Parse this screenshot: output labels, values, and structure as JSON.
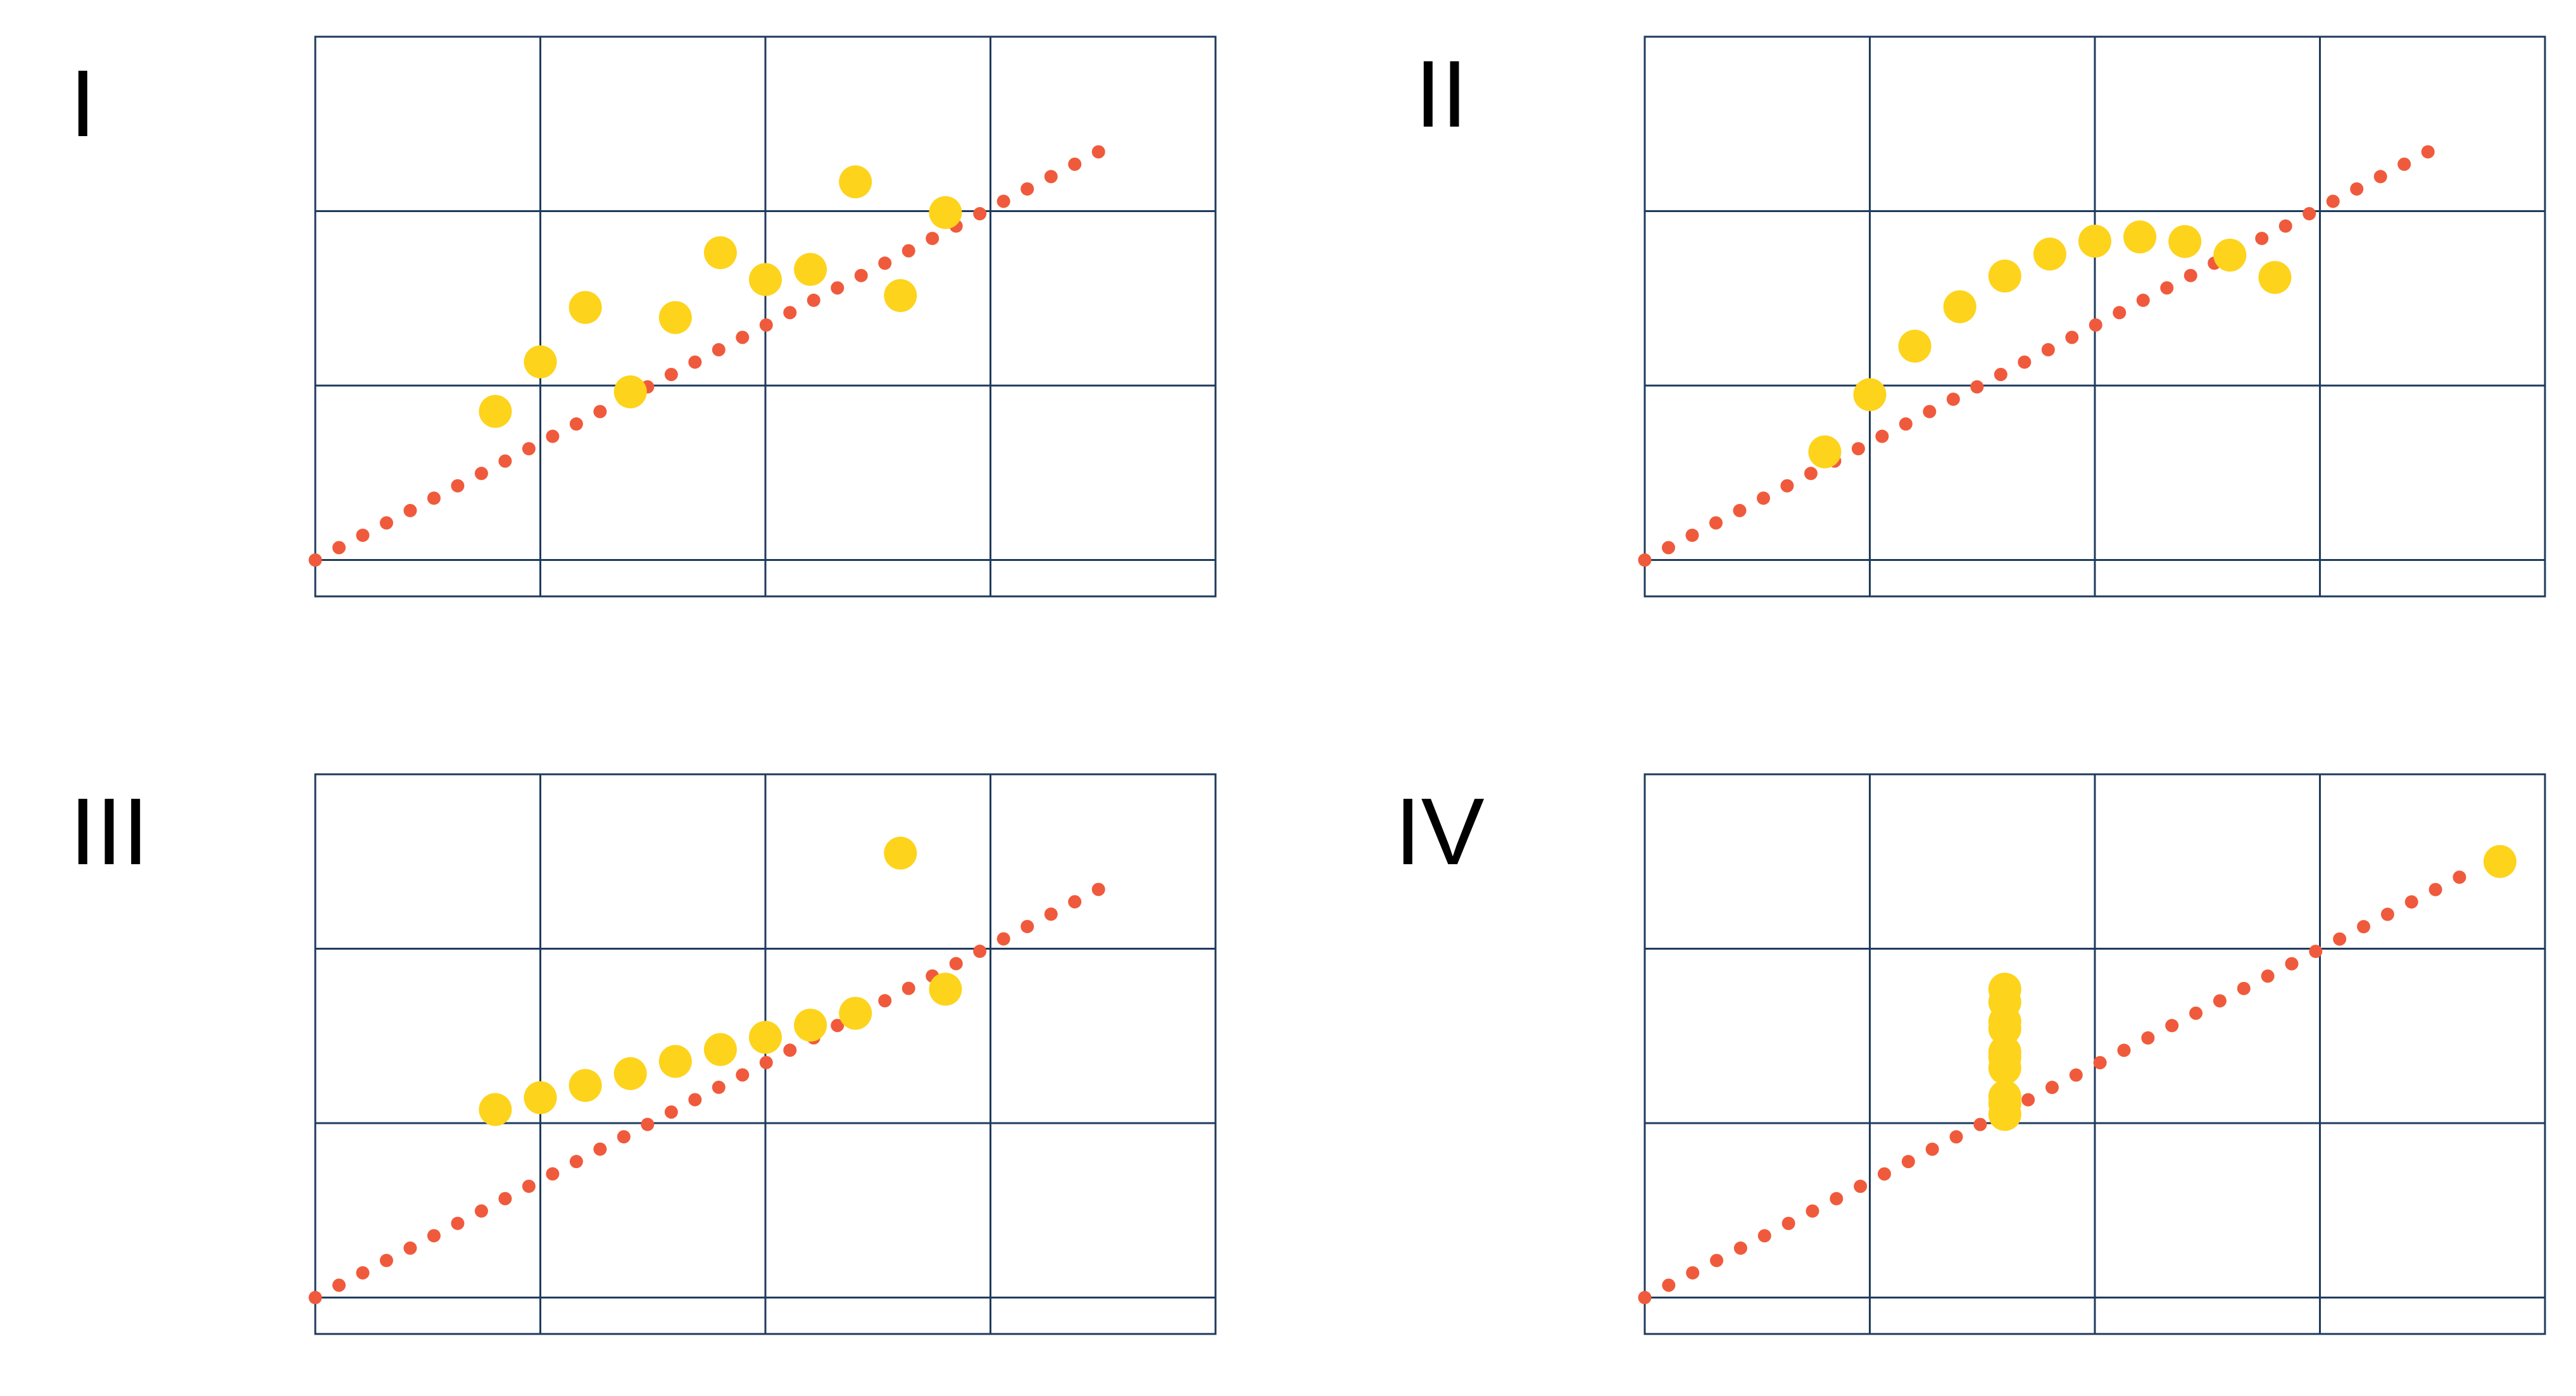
{
  "colors": {
    "grid": "#1f3b5c",
    "points": "#fdd31c",
    "regression": "#f05a3c",
    "background": "#ffffff"
  },
  "chart_data": [
    {
      "type": "scatter",
      "label": "I",
      "xlim": [
        0,
        20
      ],
      "ylim": [
        0,
        15
      ],
      "grid": true,
      "points": [
        {
          "x": 10,
          "y": 8.04
        },
        {
          "x": 8,
          "y": 6.95
        },
        {
          "x": 13,
          "y": 7.58
        },
        {
          "x": 9,
          "y": 8.81
        },
        {
          "x": 11,
          "y": 8.33
        },
        {
          "x": 14,
          "y": 9.96
        },
        {
          "x": 6,
          "y": 7.24
        },
        {
          "x": 4,
          "y": 4.26
        },
        {
          "x": 12,
          "y": 10.84
        },
        {
          "x": 7,
          "y": 4.82
        },
        {
          "x": 5,
          "y": 5.68
        }
      ],
      "regression": {
        "slope": 0.5,
        "intercept": 3.0,
        "x_range": [
          0,
          17.4
        ],
        "style": "dotted"
      }
    },
    {
      "type": "scatter",
      "label": "II",
      "xlim": [
        0,
        20
      ],
      "ylim": [
        0,
        15
      ],
      "grid": true,
      "points": [
        {
          "x": 10,
          "y": 9.14
        },
        {
          "x": 8,
          "y": 8.14
        },
        {
          "x": 13,
          "y": 8.74
        },
        {
          "x": 9,
          "y": 8.77
        },
        {
          "x": 11,
          "y": 9.26
        },
        {
          "x": 14,
          "y": 8.1
        },
        {
          "x": 6,
          "y": 6.13
        },
        {
          "x": 4,
          "y": 3.1
        },
        {
          "x": 12,
          "y": 9.13
        },
        {
          "x": 7,
          "y": 7.26
        },
        {
          "x": 5,
          "y": 4.74
        }
      ],
      "regression": {
        "slope": 0.5,
        "intercept": 3.0,
        "x_range": [
          0,
          17.4
        ],
        "style": "dotted"
      }
    },
    {
      "type": "scatter",
      "label": "III",
      "xlim": [
        0,
        20
      ],
      "ylim": [
        0,
        15
      ],
      "grid": true,
      "points": [
        {
          "x": 10,
          "y": 7.46
        },
        {
          "x": 8,
          "y": 6.77
        },
        {
          "x": 13,
          "y": 12.74
        },
        {
          "x": 9,
          "y": 7.11
        },
        {
          "x": 11,
          "y": 7.81
        },
        {
          "x": 14,
          "y": 8.84
        },
        {
          "x": 6,
          "y": 6.08
        },
        {
          "x": 4,
          "y": 5.39
        },
        {
          "x": 12,
          "y": 8.15
        },
        {
          "x": 7,
          "y": 6.42
        },
        {
          "x": 5,
          "y": 5.73
        }
      ],
      "regression": {
        "slope": 0.5,
        "intercept": 3.0,
        "x_range": [
          0,
          17.4
        ],
        "style": "dotted"
      }
    },
    {
      "type": "scatter",
      "label": "IV",
      "xlim": [
        0,
        20
      ],
      "ylim": [
        0,
        15
      ],
      "grid": true,
      "points": [
        {
          "x": 8,
          "y": 6.58
        },
        {
          "x": 8,
          "y": 5.76
        },
        {
          "x": 8,
          "y": 7.71
        },
        {
          "x": 8,
          "y": 8.84
        },
        {
          "x": 8,
          "y": 8.47
        },
        {
          "x": 8,
          "y": 7.04
        },
        {
          "x": 8,
          "y": 5.25
        },
        {
          "x": 19,
          "y": 12.5
        },
        {
          "x": 8,
          "y": 5.56
        },
        {
          "x": 8,
          "y": 7.91
        },
        {
          "x": 8,
          "y": 6.89
        }
      ],
      "regression": {
        "slope": 0.5,
        "intercept": 3.0,
        "x_range": [
          0,
          18.1
        ],
        "style": "dotted"
      }
    }
  ]
}
